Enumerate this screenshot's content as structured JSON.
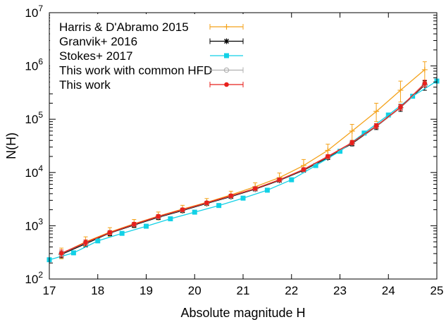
{
  "chart_data": {
    "type": "line",
    "title": "",
    "xlabel": "Absolute magnitude H",
    "ylabel": "N(H)",
    "xlim": [
      17,
      25
    ],
    "ylim": [
      100,
      10000000
    ],
    "yscale": "log",
    "grid": false,
    "legend_position": "top-left",
    "x_ticks": [
      {
        "value": 17,
        "label": "17"
      },
      {
        "value": 18,
        "label": "18"
      },
      {
        "value": 19,
        "label": "19"
      },
      {
        "value": 20,
        "label": "20"
      },
      {
        "value": 21,
        "label": "21"
      },
      {
        "value": 22,
        "label": "22"
      },
      {
        "value": 23,
        "label": "23"
      },
      {
        "value": 24,
        "label": "24"
      },
      {
        "value": 25,
        "label": "25"
      }
    ],
    "y_ticks": [
      {
        "value": 100,
        "base": "10",
        "exp": "2"
      },
      {
        "value": 1000,
        "base": "10",
        "exp": "3"
      },
      {
        "value": 10000,
        "base": "10",
        "exp": "4"
      },
      {
        "value": 100000,
        "base": "10",
        "exp": "5"
      },
      {
        "value": 1000000,
        "base": "10",
        "exp": "6"
      },
      {
        "value": 10000000,
        "base": "10",
        "exp": "7"
      }
    ],
    "series": [
      {
        "name": "Harris & D'Abramo 2015",
        "color": "#f4a21a",
        "marker": "plus",
        "errorbars": true,
        "x": [
          17.25,
          17.75,
          18.25,
          18.75,
          19.25,
          19.75,
          20.25,
          20.75,
          21.25,
          21.75,
          22.25,
          22.75,
          23.25,
          23.75,
          24.25,
          24.75
        ],
        "y": [
          300,
          500,
          760,
          1090,
          1520,
          2050,
          2750,
          3800,
          5400,
          8000,
          13500,
          26000,
          60000,
          140000,
          350000,
          850000
        ],
        "yerr_low": [
          240,
          410,
          630,
          920,
          1290,
          1760,
          2380,
          3250,
          4560,
          6600,
          10500,
          19000,
          40000,
          90000,
          210000,
          520000
        ],
        "yerr_high": [
          380,
          620,
          920,
          1310,
          1810,
          2420,
          3250,
          4450,
          6400,
          9800,
          17500,
          34000,
          80000,
          200000,
          520000,
          1200000
        ]
      },
      {
        "name": "Granvik+ 2016",
        "color": "#000000",
        "marker": "star",
        "errorbars": true,
        "x": [
          17.25,
          17.75,
          18.25,
          18.75,
          19.25,
          19.75,
          20.25,
          20.75,
          21.25,
          21.75,
          22.25,
          22.75,
          23.25,
          23.75,
          24.25,
          24.75
        ],
        "y": [
          290,
          460,
          730,
          1030,
          1440,
          1930,
          2620,
          3530,
          4880,
          7100,
          11000,
          19000,
          35000,
          73000,
          165000,
          440000
        ],
        "yerr_low": [
          250,
          400,
          650,
          930,
          1310,
          1770,
          2430,
          3280,
          4550,
          6600,
          10200,
          17500,
          31500,
          64000,
          140000,
          350000
        ],
        "yerr_high": [
          330,
          520,
          810,
          1130,
          1580,
          2100,
          2820,
          3800,
          5230,
          7600,
          11900,
          20600,
          38500,
          82000,
          190000,
          530000
        ]
      },
      {
        "name": "Stokes+ 2017",
        "color": "#12d1e6",
        "marker": "square",
        "errorbars": false,
        "x": [
          17.0,
          17.5,
          18.0,
          18.5,
          19.0,
          19.5,
          20.0,
          20.5,
          21.0,
          21.5,
          22.0,
          22.5,
          23.0,
          23.5,
          24.0,
          24.5,
          25.0
        ],
        "y": [
          230,
          310,
          520,
          720,
          980,
          1350,
          1800,
          2400,
          3300,
          4650,
          7300,
          13500,
          25000,
          55000,
          120000,
          270000,
          520000
        ]
      },
      {
        "name": "This work with common HFD",
        "color": "#b0b0b0",
        "marker": "circle-open",
        "errorbars": true,
        "x": [
          17.25,
          17.75,
          18.25,
          18.75,
          19.25,
          19.75,
          20.25,
          20.75,
          21.25,
          21.75,
          22.25,
          22.75,
          23.25,
          23.75,
          24.25,
          24.75
        ],
        "y": [
          300,
          480,
          740,
          1060,
          1480,
          1980,
          2680,
          3620,
          4980,
          7250,
          11300,
          19700,
          36000,
          74000,
          165000,
          460000
        ],
        "yerr_low": [
          270,
          440,
          690,
          990,
          1390,
          1870,
          2530,
          3420,
          4700,
          6850,
          10600,
          18500,
          33500,
          68000,
          150000,
          410000
        ],
        "yerr_high": [
          330,
          520,
          790,
          1130,
          1570,
          2090,
          2830,
          3820,
          5260,
          7650,
          12000,
          20900,
          38500,
          80000,
          180000,
          510000
        ]
      },
      {
        "name": "This work",
        "color": "#e8201c",
        "marker": "circle-filled",
        "errorbars": true,
        "x": [
          17.25,
          17.75,
          18.25,
          18.75,
          19.25,
          19.75,
          20.25,
          20.75,
          21.25,
          21.75,
          22.25,
          22.75,
          23.25,
          23.75,
          24.25,
          24.75
        ],
        "y": [
          305,
          485,
          745,
          1070,
          1500,
          2000,
          2700,
          3650,
          5000,
          7300,
          11400,
          20000,
          36500,
          75000,
          168000,
          470000
        ],
        "yerr_low": [
          260,
          430,
          680,
          980,
          1380,
          1850,
          2500,
          3380,
          4640,
          6750,
          10500,
          18300,
          33000,
          67000,
          148000,
          400000
        ],
        "yerr_high": [
          350,
          540,
          810,
          1160,
          1620,
          2150,
          2900,
          3920,
          5360,
          7850,
          12300,
          21700,
          40000,
          83000,
          188000,
          540000
        ]
      }
    ]
  }
}
